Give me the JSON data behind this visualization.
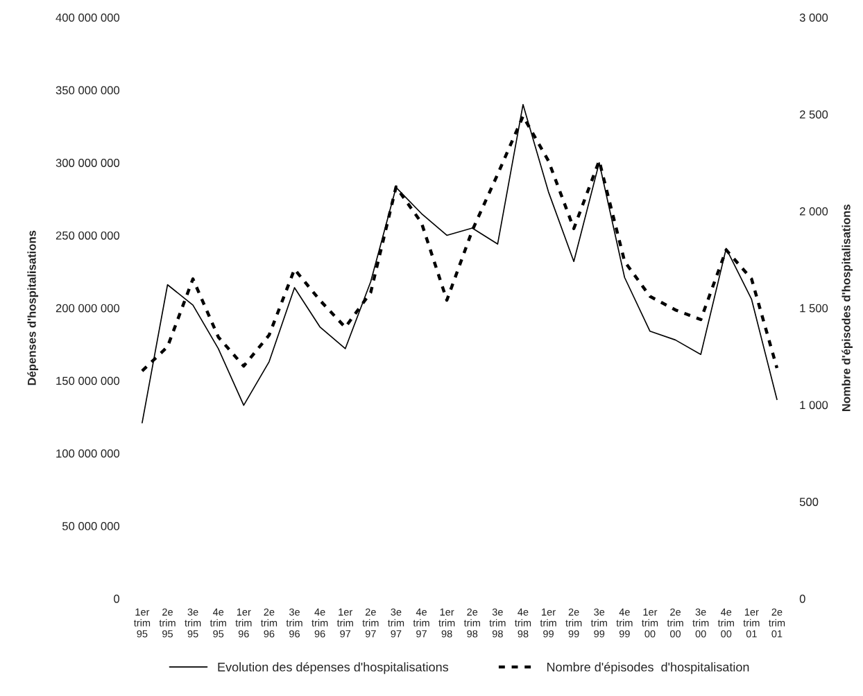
{
  "chart_data": {
    "type": "line",
    "ylabel": "Dépenses d'hospitalisations",
    "y2label": "Nombre d'épisodes d'hospitalisations",
    "categories": [
      "1er\ntrim\n95",
      "2e\ntrim\n95",
      "3e\ntrim\n95",
      "4e\ntrim\n95",
      "1er\ntrim\n96",
      "2e\ntrim\n96",
      "3e\ntrim\n96",
      "4e\ntrim\n96",
      "1er\ntrim\n97",
      "2e\ntrim\n97",
      "3e\ntrim\n97",
      "4e\ntrim\n97",
      "1er\ntrim\n98",
      "2e\ntrim\n98",
      "3e\ntrim\n98",
      "4e\ntrim\n98",
      "1er\ntrim\n99",
      "2e\ntrim\n99",
      "3e\ntrim\n99",
      "4e\ntrim\n99",
      "1er\ntrim\n00",
      "2e\ntrim\n00",
      "3e\ntrim\n00",
      "4e\ntrim\n00",
      "1er\ntrim\n01",
      "2e\ntrim\n01"
    ],
    "series": [
      {
        "name": "Evolution des dépenses d'hospitalisations",
        "color": "#000000",
        "line_style": "solid",
        "values": [
          121000000,
          216000000,
          202000000,
          172000000,
          133000000,
          163000000,
          214000000,
          187000000,
          172000000,
          218000000,
          283000000,
          265000000,
          250000000,
          255000000,
          244000000,
          340000000,
          280000000,
          232000000,
          300000000,
          221000000,
          184000000,
          178000000,
          168000000,
          241000000,
          206000000,
          137000000
        ]
      },
      {
        "name": "Nombre d'épisodes  d'hospitalisation",
        "color": "#000000",
        "line_style": "dashed",
        "axis": "y2",
        "values": [
          1175,
          1300,
          1650,
          1350,
          1200,
          1360,
          1700,
          1540,
          1400,
          1580,
          2125,
          1940,
          1540,
          1900,
          2190,
          2490,
          2260,
          1910,
          2260,
          1740,
          1560,
          1490,
          1440,
          1800,
          1650,
          1190
        ]
      }
    ],
    "ylim": [
      0,
      400000000
    ],
    "yticks": [
      {
        "value": 0,
        "label": "0"
      },
      {
        "value": 50000000,
        "label": "50 000 000"
      },
      {
        "value": 100000000,
        "label": "100 000 000"
      },
      {
        "value": 150000000,
        "label": "150 000 000"
      },
      {
        "value": 200000000,
        "label": "200 000 000"
      },
      {
        "value": 250000000,
        "label": "250 000 000"
      },
      {
        "value": 300000000,
        "label": "300 000 000"
      },
      {
        "value": 350000000,
        "label": "350 000 000"
      },
      {
        "value": 400000000,
        "label": "400 000 000"
      }
    ],
    "y2lim": [
      0,
      3000
    ],
    "y2ticks": [
      0,
      500,
      {
        "value": 1000,
        "label": "1 000"
      },
      {
        "value": 1500,
        "label": "1 500"
      },
      {
        "value": 2000,
        "label": "2 000"
      },
      {
        "value": 2500,
        "label": "2 500"
      },
      {
        "value": 3000,
        "label": "3 000"
      }
    ],
    "grid": false,
    "legend": "bottom"
  }
}
